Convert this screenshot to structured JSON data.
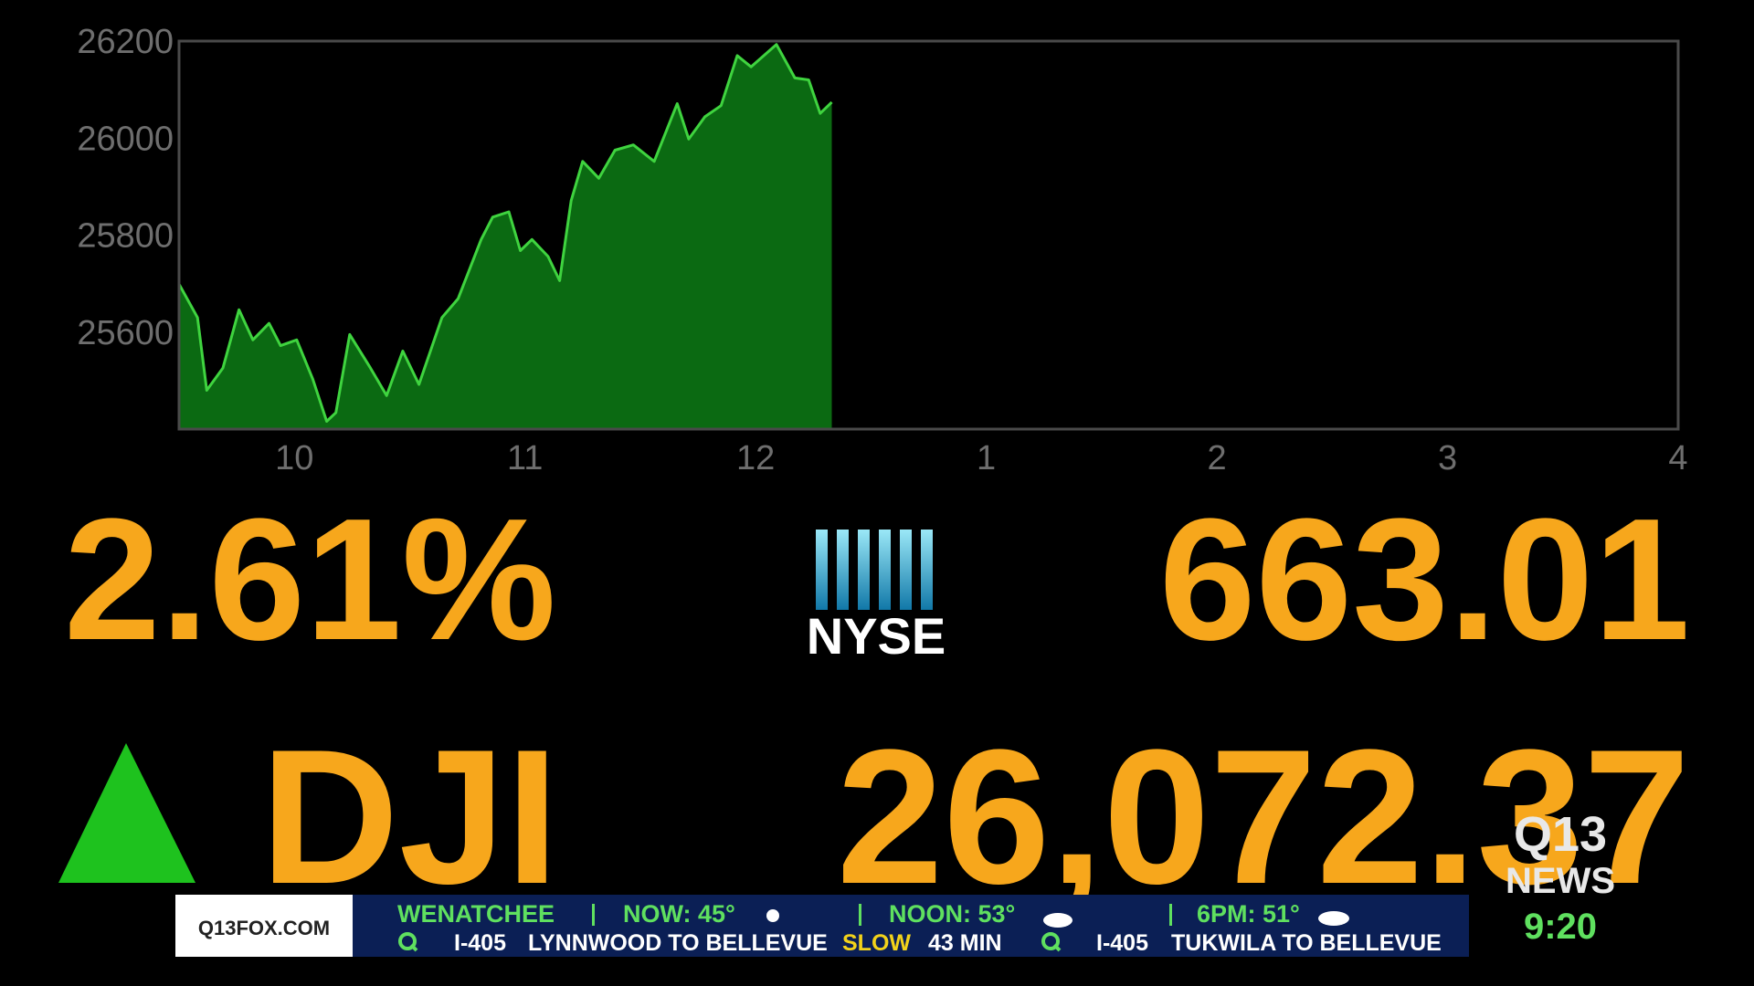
{
  "chart_data": {
    "type": "area",
    "x": [
      9.5,
      9.58,
      9.62,
      9.69,
      9.76,
      9.82,
      9.89,
      9.94,
      10.01,
      10.08,
      10.14,
      10.18,
      10.24,
      10.33,
      10.4,
      10.47,
      10.54,
      10.64,
      10.71,
      10.81,
      10.86,
      10.93,
      10.98,
      11.03,
      11.1,
      11.15,
      11.2,
      11.25,
      11.32,
      11.39,
      11.47,
      11.56,
      11.66,
      11.71,
      11.78,
      11.85,
      11.92,
      11.98,
      12.09,
      12.17,
      12.23,
      12.28,
      12.33
    ],
    "series": [
      {
        "color": "#3fd43f",
        "values": [
          25699,
          25630,
          25480,
          25526,
          25646,
          25584,
          25618,
          25572,
          25584,
          25503,
          25416,
          25434,
          25595,
          25526,
          25469,
          25561,
          25492,
          25630,
          25669,
          25791,
          25837,
          25848,
          25768,
          25791,
          25756,
          25706,
          25871,
          25952,
          25917,
          25975,
          25986,
          25952,
          26071,
          25998,
          26044,
          26067,
          26170,
          26147,
          26193,
          26124,
          26120,
          26051,
          26074
        ]
      }
    ],
    "fill_color": "#0b6a12",
    "xlim": [
      9.5,
      16
    ],
    "xticks": [
      10,
      11,
      12,
      {
        "value": 13,
        "label": "1"
      },
      {
        "value": 14,
        "label": "2"
      },
      {
        "value": 15,
        "label": "3"
      },
      {
        "value": 16,
        "label": "4"
      }
    ],
    "ylim": [
      25400,
      26200
    ],
    "yticks": [
      25600,
      25800,
      26000,
      26200
    ],
    "grid": false
  },
  "quote": {
    "change_pct": "2.61%",
    "points": "663.01",
    "exchange": "NYSE",
    "index": "DJI",
    "value": "26,072.37"
  },
  "ticker": {
    "site": "Q13FOX.COM",
    "city": "WENATCHEE",
    "now": "NOW: 45°",
    "noon": "NOON: 53°",
    "evening": "6PM: 51°",
    "traffic": [
      {
        "road": "I-405",
        "route": "LYNNWOOD TO BELLEVUE",
        "status": "SLOW",
        "time": "43 MIN"
      },
      {
        "road": "I-405",
        "route": "TUKWILA TO BELLEVUE"
      }
    ]
  },
  "station": {
    "logo_top": "Q13",
    "logo_bottom": "NEWS",
    "clock": "9:20"
  }
}
